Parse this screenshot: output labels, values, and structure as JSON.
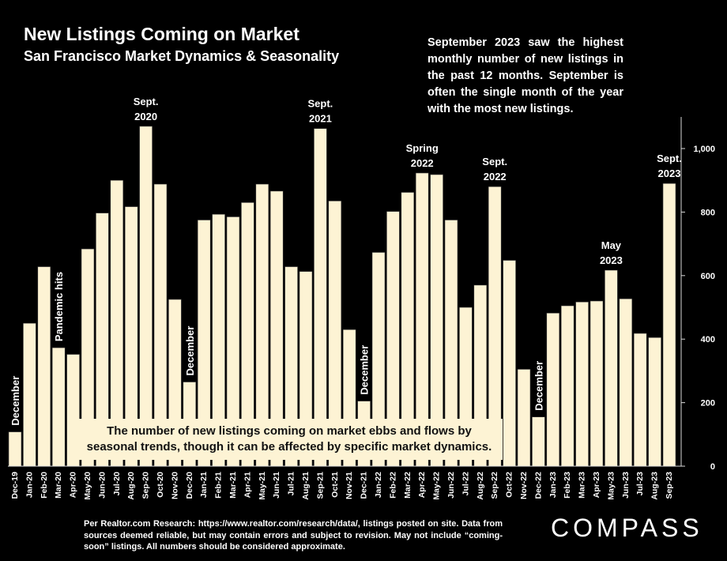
{
  "header": {
    "title": "New Listings Coming on Market",
    "subtitle": "San Francisco Market Dynamics & Seasonality"
  },
  "callout": "September 2023 saw the highest monthly number of new listings in the past 12 months. September is often the single month of the year with the most new listings.",
  "note_box": {
    "line1": "The number of new listings coming on market ebbs and flows by",
    "line2": "seasonal trends, though it can be affected by specific market dynamics."
  },
  "source": "Per Realtor.com Research: https://www.realtor.com/research/data/, listings posted on site. Data from sources deemed reliable, but may contain errors and subject to revision. May not include “coming-soon” listings. All numbers should be considered approximate.",
  "logo": "COMPASS",
  "colors": {
    "background": "#000000",
    "bar": "#fdf3d4",
    "bar_stroke": "#3a3a3a",
    "text": "#ffffff"
  },
  "chart_data": {
    "type": "bar",
    "categories": [
      "Dec-19",
      "Jan-20",
      "Feb-20",
      "Mar-20",
      "Apr-20",
      "May-20",
      "Jun-20",
      "Jul-20",
      "Aug-20",
      "Sep-20",
      "Oct-20",
      "Nov-20",
      "Dec-20",
      "Jan-21",
      "Feb-21",
      "Mar-21",
      "Apr-21",
      "May-21",
      "Jun-21",
      "Jul-21",
      "Aug-21",
      "Sep-21",
      "Oct-21",
      "Nov-21",
      "Dec-21",
      "Jan-22",
      "Feb-22",
      "Mar-22",
      "Apr-22",
      "May-22",
      "Jun-22",
      "Jul-22",
      "Aug-22",
      "Sep-22",
      "Oct-22",
      "Nov-22",
      "Dec-22",
      "Jan-23",
      "Feb-23",
      "Mar-23",
      "Apr-23",
      "May-23",
      "Jun-23",
      "Jul-23",
      "Aug-23",
      "Sep-23"
    ],
    "values": [
      108,
      450,
      628,
      373,
      352,
      684,
      797,
      900,
      817,
      1070,
      888,
      525,
      265,
      775,
      793,
      785,
      830,
      888,
      866,
      628,
      613,
      1063,
      835,
      430,
      205,
      673,
      802,
      862,
      923,
      918,
      775,
      500,
      570,
      880,
      648,
      305,
      155,
      482,
      505,
      517,
      520,
      617,
      527,
      418,
      405,
      890
    ],
    "y_ticks": [
      0,
      200,
      400,
      600,
      800,
      "1,000"
    ],
    "ylim": [
      0,
      1100
    ],
    "xlabel": "",
    "ylabel": "",
    "grid": false,
    "annotations": [
      {
        "index": 0,
        "lines": [
          "December"
        ],
        "style": "vertical"
      },
      {
        "index": 3,
        "lines": [
          "Pandemic hits"
        ],
        "style": "vertical"
      },
      {
        "index": 9,
        "lines": [
          "Sept.",
          "2020"
        ],
        "style": "horizontal"
      },
      {
        "index": 12,
        "lines": [
          "December"
        ],
        "style": "vertical"
      },
      {
        "index": 21,
        "lines": [
          "Sept.",
          "2021"
        ],
        "style": "horizontal"
      },
      {
        "index": 24,
        "lines": [
          "December"
        ],
        "style": "vertical"
      },
      {
        "index": 28,
        "lines": [
          "Spring",
          "2022"
        ],
        "style": "horizontal"
      },
      {
        "index": 33,
        "lines": [
          "Sept.",
          "2022"
        ],
        "style": "horizontal"
      },
      {
        "index": 36,
        "lines": [
          "December"
        ],
        "style": "vertical"
      },
      {
        "index": 41,
        "lines": [
          "May",
          "2023"
        ],
        "style": "horizontal"
      },
      {
        "index": 45,
        "lines": [
          "Sept.",
          "2023"
        ],
        "style": "horizontal"
      }
    ]
  }
}
